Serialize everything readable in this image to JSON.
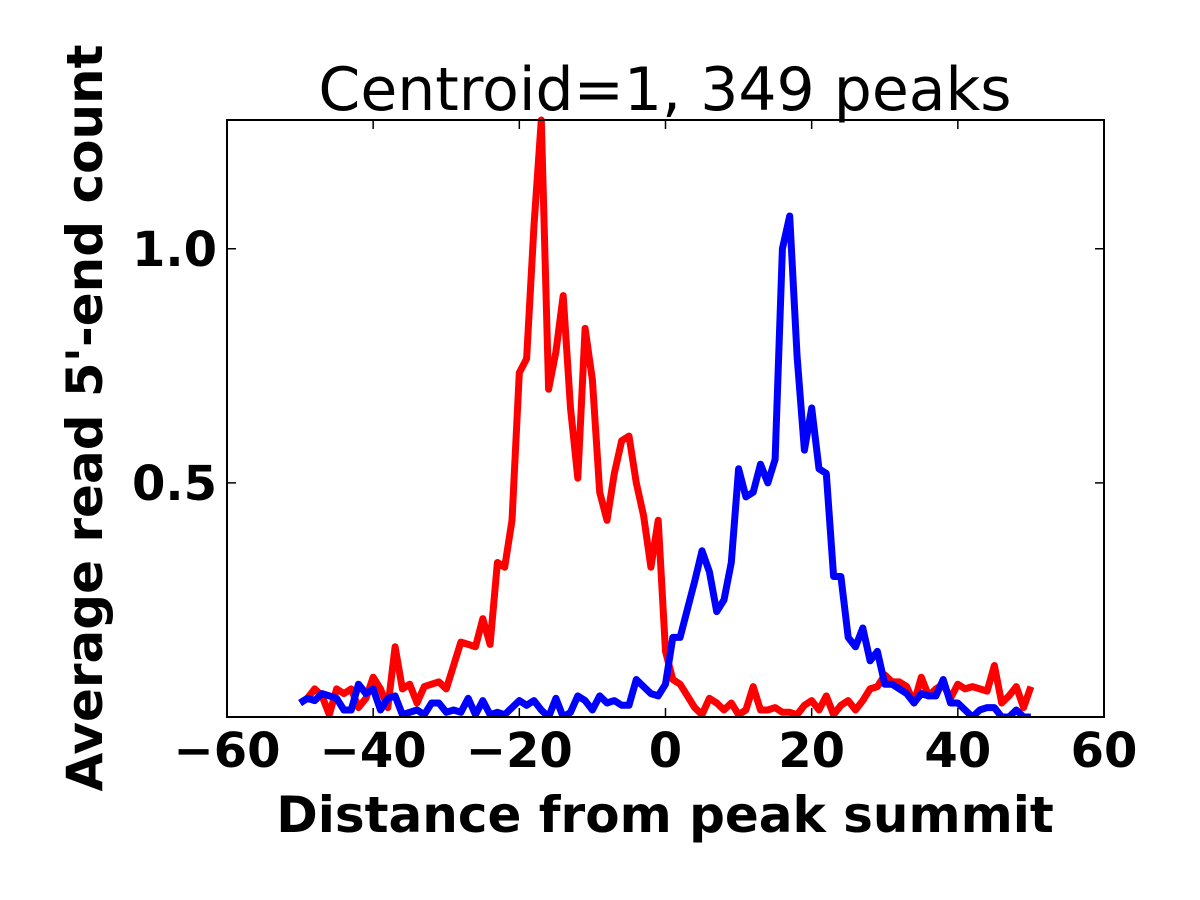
{
  "chart_data": {
    "type": "line",
    "title": "Centroid=1, 349 peaks",
    "xlabel": "Distance from peak summit",
    "ylabel": "Average read 5'-end count",
    "xlim": [
      -60,
      60
    ],
    "ylim": [
      0,
      1.275
    ],
    "xticks": [
      -60,
      -40,
      -20,
      0,
      20,
      40,
      60
    ],
    "xtick_labels": [
      "−60",
      "−40",
      "−20",
      "0",
      "20",
      "40",
      "60"
    ],
    "yticks": [
      0.5,
      1.0
    ],
    "ytick_labels": [
      "0.5",
      "1.0"
    ],
    "grid": false,
    "x_start": -50,
    "x_step": 1,
    "series": [
      {
        "name": "red",
        "color": "#ff0000",
        "values": [
          0.03,
          0.04,
          0.06,
          0.045,
          0.005,
          0.06,
          0.05,
          0.06,
          0.02,
          0.04,
          0.085,
          0.06,
          0.02,
          0.15,
          0.06,
          0.07,
          0.03,
          0.065,
          0.07,
          0.075,
          0.06,
          0.11,
          0.16,
          0.155,
          0.15,
          0.21,
          0.155,
          0.33,
          0.32,
          0.42,
          0.735,
          0.765,
          1.05,
          1.275,
          0.7,
          0.78,
          0.9,
          0.66,
          0.51,
          0.83,
          0.72,
          0.48,
          0.42,
          0.52,
          0.59,
          0.6,
          0.5,
          0.43,
          0.32,
          0.42,
          0.14,
          0.08,
          0.07,
          0.045,
          0.02,
          0.005,
          0.04,
          0.03,
          0.015,
          0.03,
          0.005,
          0.015,
          0.065,
          0.015,
          0.015,
          0.02,
          0.01,
          0.01,
          0.005,
          0.025,
          0.035,
          0.015,
          0.045,
          0.005,
          0.025,
          0.035,
          0.015,
          0.035,
          0.06,
          0.065,
          0.09,
          0.075,
          0.075,
          0.065,
          0.03,
          0.085,
          0.045,
          0.06,
          0.07,
          0.04,
          0.07,
          0.06,
          0.065,
          0.06,
          0.055,
          0.11,
          0.03,
          0.045,
          0.065,
          0.02,
          0.065
        ]
      },
      {
        "name": "blue",
        "color": "#0000ff",
        "values": [
          0.03,
          0.04,
          0.035,
          0.05,
          0.045,
          0.04,
          0.015,
          0.015,
          0.07,
          0.05,
          0.06,
          0.015,
          0.04,
          0.045,
          0.005,
          0.01,
          0.015,
          0.005,
          0.03,
          0.03,
          0.01,
          0.015,
          0.01,
          0.04,
          0.005,
          0.035,
          0.005,
          0.01,
          0.005,
          0.02,
          0.035,
          0.025,
          0.035,
          0.015,
          0.0,
          0.04,
          0.0,
          0.01,
          0.045,
          0.035,
          0.015,
          0.045,
          0.03,
          0.035,
          0.025,
          0.025,
          0.08,
          0.065,
          0.05,
          0.045,
          0.07,
          0.17,
          0.17,
          0.23,
          0.29,
          0.355,
          0.31,
          0.225,
          0.25,
          0.33,
          0.53,
          0.47,
          0.48,
          0.54,
          0.5,
          0.55,
          1.0,
          1.07,
          0.77,
          0.57,
          0.66,
          0.53,
          0.52,
          0.3,
          0.3,
          0.17,
          0.15,
          0.19,
          0.12,
          0.14,
          0.07,
          0.07,
          0.06,
          0.05,
          0.03,
          0.05,
          0.045,
          0.045,
          0.08,
          0.03,
          0.03,
          0.015,
          0.0,
          0.015,
          0.02,
          0.02,
          0.0,
          0.0,
          0.015,
          0.0,
          0.0
        ]
      }
    ]
  }
}
